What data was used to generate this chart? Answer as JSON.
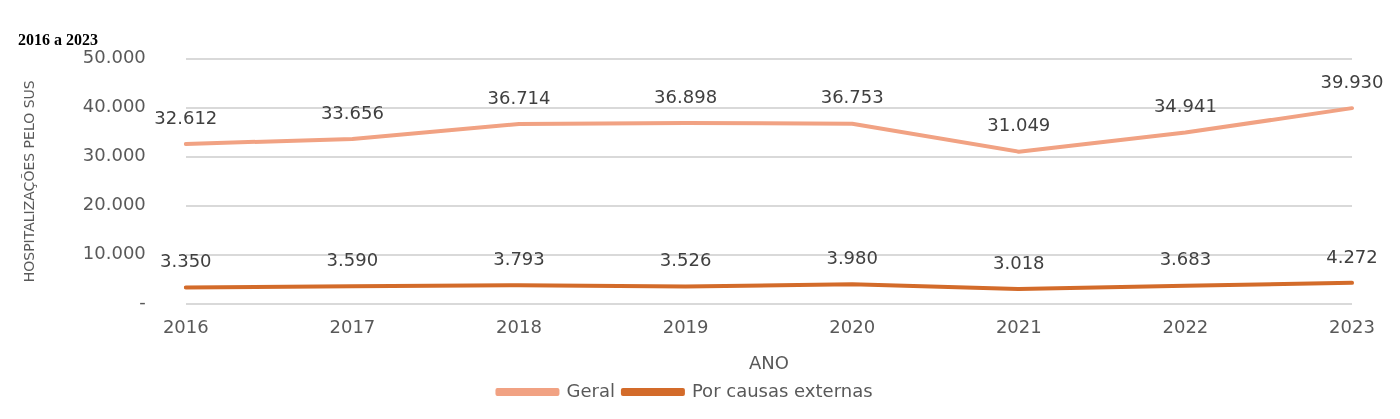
{
  "chart_data": {
    "type": "line",
    "title": "2016 a 2023",
    "xlabel": "ANO",
    "ylabel": "HOSPITALIZAÇÕES PELO SUS",
    "categories": [
      "2016",
      "2017",
      "2018",
      "2019",
      "2020",
      "2021",
      "2022",
      "2023"
    ],
    "series": [
      {
        "name": "Geral",
        "color": "#f1a283",
        "values": [
          32612,
          33656,
          36714,
          36898,
          36753,
          31049,
          34941,
          39930
        ],
        "value_labels": [
          "32.612",
          "33.656",
          "36.714",
          "36.898",
          "36.753",
          "31.049",
          "34.941",
          "39.930"
        ]
      },
      {
        "name": "Por causas externas",
        "color": "#d36b2a",
        "values": [
          3350,
          3590,
          3793,
          3526,
          3980,
          3018,
          3683,
          4272
        ],
        "value_labels": [
          "3.350",
          "3.590",
          "3.793",
          "3.526",
          "3.980",
          "3.018",
          "3.683",
          "4.272"
        ]
      }
    ],
    "ylim": [
      0,
      50000
    ],
    "yticks": [
      {
        "value": 0,
        "label": "-"
      },
      {
        "value": 10000,
        "label": "10.000"
      },
      {
        "value": 20000,
        "label": "20.000"
      },
      {
        "value": 30000,
        "label": "30.000"
      },
      {
        "value": 40000,
        "label": "40.000"
      },
      {
        "value": 50000,
        "label": "50.000"
      }
    ],
    "grid": "y",
    "legend": "bottom",
    "marker": "none",
    "line_style": "solid"
  }
}
